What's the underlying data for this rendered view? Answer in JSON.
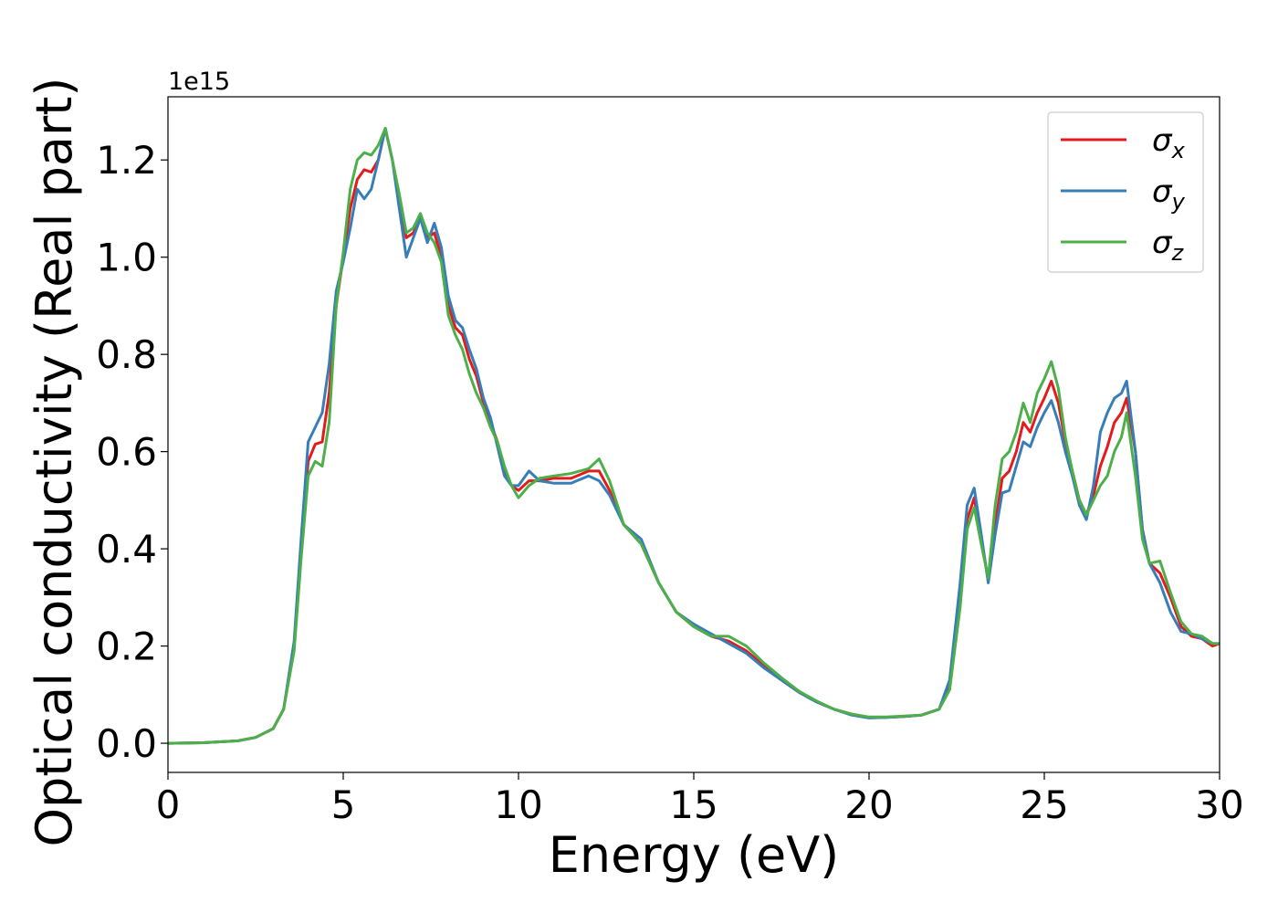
{
  "chart_data": {
    "type": "line",
    "title": "",
    "xlabel": "Energy (eV)",
    "ylabel": "Optical conductivity (Real part)",
    "y_offset_label": "1e15",
    "xlim": [
      0,
      30
    ],
    "ylim": [
      -0.06,
      1.33
    ],
    "x_ticks": [
      0,
      5,
      10,
      15,
      20,
      25,
      30
    ],
    "x_tick_labels": [
      "0",
      "5",
      "10",
      "15",
      "20",
      "25",
      "30"
    ],
    "y_ticks": [
      0.0,
      0.2,
      0.4,
      0.6,
      0.8,
      1.0,
      1.2
    ],
    "y_tick_labels": [
      "0.0",
      "0.2",
      "0.4",
      "0.6",
      "0.8",
      "1.0",
      "1.2"
    ],
    "grid": false,
    "legend_position": "top-right",
    "series": [
      {
        "name": "σx",
        "legend_base": "σ",
        "legend_sub": "x",
        "color": "#e41a1c",
        "points": [
          [
            0,
            0.0
          ],
          [
            1,
            0.001
          ],
          [
            2,
            0.005
          ],
          [
            2.5,
            0.012
          ],
          [
            3,
            0.03
          ],
          [
            3.3,
            0.07
          ],
          [
            3.6,
            0.2
          ],
          [
            3.8,
            0.4
          ],
          [
            4.0,
            0.58
          ],
          [
            4.2,
            0.615
          ],
          [
            4.4,
            0.62
          ],
          [
            4.6,
            0.72
          ],
          [
            4.8,
            0.9
          ],
          [
            5.0,
            1.0
          ],
          [
            5.2,
            1.1
          ],
          [
            5.4,
            1.16
          ],
          [
            5.6,
            1.18
          ],
          [
            5.8,
            1.175
          ],
          [
            6.0,
            1.2
          ],
          [
            6.2,
            1.265
          ],
          [
            6.4,
            1.2
          ],
          [
            6.6,
            1.12
          ],
          [
            6.8,
            1.04
          ],
          [
            7.0,
            1.05
          ],
          [
            7.2,
            1.085
          ],
          [
            7.4,
            1.04
          ],
          [
            7.6,
            1.05
          ],
          [
            7.8,
            1.0
          ],
          [
            8.0,
            0.9
          ],
          [
            8.2,
            0.855
          ],
          [
            8.4,
            0.84
          ],
          [
            8.6,
            0.79
          ],
          [
            8.8,
            0.755
          ],
          [
            9.0,
            0.7
          ],
          [
            9.2,
            0.66
          ],
          [
            9.4,
            0.62
          ],
          [
            9.6,
            0.56
          ],
          [
            9.8,
            0.53
          ],
          [
            10.0,
            0.52
          ],
          [
            10.3,
            0.54
          ],
          [
            10.6,
            0.54
          ],
          [
            11.0,
            0.545
          ],
          [
            11.5,
            0.545
          ],
          [
            12.0,
            0.56
          ],
          [
            12.3,
            0.56
          ],
          [
            12.6,
            0.52
          ],
          [
            13.0,
            0.45
          ],
          [
            13.5,
            0.41
          ],
          [
            14.0,
            0.33
          ],
          [
            14.5,
            0.27
          ],
          [
            15.0,
            0.24
          ],
          [
            15.5,
            0.22
          ],
          [
            16.0,
            0.21
          ],
          [
            16.5,
            0.19
          ],
          [
            17.0,
            0.16
          ],
          [
            17.5,
            0.13
          ],
          [
            18.0,
            0.105
          ],
          [
            18.5,
            0.085
          ],
          [
            19.0,
            0.07
          ],
          [
            19.5,
            0.06
          ],
          [
            20.0,
            0.053
          ],
          [
            20.5,
            0.053
          ],
          [
            21.0,
            0.055
          ],
          [
            21.5,
            0.058
          ],
          [
            22.0,
            0.07
          ],
          [
            22.3,
            0.12
          ],
          [
            22.6,
            0.3
          ],
          [
            22.8,
            0.46
          ],
          [
            23.0,
            0.505
          ],
          [
            23.2,
            0.42
          ],
          [
            23.4,
            0.335
          ],
          [
            23.6,
            0.45
          ],
          [
            23.8,
            0.545
          ],
          [
            24.0,
            0.56
          ],
          [
            24.2,
            0.6
          ],
          [
            24.4,
            0.66
          ],
          [
            24.6,
            0.64
          ],
          [
            24.8,
            0.68
          ],
          [
            25.0,
            0.71
          ],
          [
            25.2,
            0.745
          ],
          [
            25.4,
            0.7
          ],
          [
            25.6,
            0.62
          ],
          [
            25.8,
            0.56
          ],
          [
            26.0,
            0.5
          ],
          [
            26.2,
            0.47
          ],
          [
            26.4,
            0.51
          ],
          [
            26.6,
            0.57
          ],
          [
            26.8,
            0.61
          ],
          [
            27.0,
            0.66
          ],
          [
            27.2,
            0.68
          ],
          [
            27.35,
            0.71
          ],
          [
            27.6,
            0.6
          ],
          [
            27.8,
            0.44
          ],
          [
            28.0,
            0.37
          ],
          [
            28.3,
            0.35
          ],
          [
            28.6,
            0.3
          ],
          [
            28.9,
            0.24
          ],
          [
            29.2,
            0.22
          ],
          [
            29.5,
            0.215
          ],
          [
            29.8,
            0.2
          ],
          [
            30.0,
            0.205
          ]
        ]
      },
      {
        "name": "σy",
        "legend_base": "σ",
        "legend_sub": "y",
        "color": "#377eb8",
        "points": [
          [
            0,
            0.0
          ],
          [
            1,
            0.001
          ],
          [
            2,
            0.005
          ],
          [
            2.5,
            0.012
          ],
          [
            3,
            0.03
          ],
          [
            3.3,
            0.07
          ],
          [
            3.6,
            0.21
          ],
          [
            3.8,
            0.42
          ],
          [
            4.0,
            0.62
          ],
          [
            4.2,
            0.65
          ],
          [
            4.4,
            0.68
          ],
          [
            4.6,
            0.78
          ],
          [
            4.8,
            0.93
          ],
          [
            5.0,
            0.99
          ],
          [
            5.2,
            1.06
          ],
          [
            5.4,
            1.14
          ],
          [
            5.6,
            1.12
          ],
          [
            5.8,
            1.14
          ],
          [
            6.0,
            1.2
          ],
          [
            6.2,
            1.265
          ],
          [
            6.4,
            1.2
          ],
          [
            6.6,
            1.1
          ],
          [
            6.8,
            1.0
          ],
          [
            7.0,
            1.04
          ],
          [
            7.2,
            1.08
          ],
          [
            7.4,
            1.03
          ],
          [
            7.6,
            1.07
          ],
          [
            7.8,
            1.02
          ],
          [
            8.0,
            0.92
          ],
          [
            8.2,
            0.87
          ],
          [
            8.4,
            0.855
          ],
          [
            8.6,
            0.81
          ],
          [
            8.8,
            0.77
          ],
          [
            9.0,
            0.71
          ],
          [
            9.2,
            0.67
          ],
          [
            9.4,
            0.61
          ],
          [
            9.6,
            0.55
          ],
          [
            9.8,
            0.53
          ],
          [
            10.0,
            0.53
          ],
          [
            10.3,
            0.56
          ],
          [
            10.6,
            0.54
          ],
          [
            11.0,
            0.535
          ],
          [
            11.5,
            0.535
          ],
          [
            12.0,
            0.55
          ],
          [
            12.3,
            0.54
          ],
          [
            12.6,
            0.51
          ],
          [
            13.0,
            0.45
          ],
          [
            13.5,
            0.42
          ],
          [
            14.0,
            0.33
          ],
          [
            14.5,
            0.27
          ],
          [
            15.0,
            0.245
          ],
          [
            15.5,
            0.225
          ],
          [
            16.0,
            0.205
          ],
          [
            16.5,
            0.185
          ],
          [
            17.0,
            0.155
          ],
          [
            17.5,
            0.13
          ],
          [
            18.0,
            0.105
          ],
          [
            18.5,
            0.085
          ],
          [
            19.0,
            0.07
          ],
          [
            19.5,
            0.058
          ],
          [
            20.0,
            0.052
          ],
          [
            20.5,
            0.053
          ],
          [
            21.0,
            0.055
          ],
          [
            21.5,
            0.058
          ],
          [
            22.0,
            0.07
          ],
          [
            22.3,
            0.13
          ],
          [
            22.6,
            0.33
          ],
          [
            22.8,
            0.49
          ],
          [
            23.0,
            0.525
          ],
          [
            23.2,
            0.43
          ],
          [
            23.4,
            0.33
          ],
          [
            23.6,
            0.43
          ],
          [
            23.8,
            0.515
          ],
          [
            24.0,
            0.52
          ],
          [
            24.2,
            0.57
          ],
          [
            24.4,
            0.62
          ],
          [
            24.6,
            0.61
          ],
          [
            24.8,
            0.65
          ],
          [
            25.0,
            0.68
          ],
          [
            25.2,
            0.705
          ],
          [
            25.4,
            0.66
          ],
          [
            25.6,
            0.6
          ],
          [
            25.8,
            0.55
          ],
          [
            26.0,
            0.49
          ],
          [
            26.2,
            0.46
          ],
          [
            26.4,
            0.53
          ],
          [
            26.6,
            0.64
          ],
          [
            26.8,
            0.68
          ],
          [
            27.0,
            0.71
          ],
          [
            27.2,
            0.72
          ],
          [
            27.35,
            0.745
          ],
          [
            27.6,
            0.6
          ],
          [
            27.8,
            0.44
          ],
          [
            28.0,
            0.37
          ],
          [
            28.3,
            0.33
          ],
          [
            28.6,
            0.27
          ],
          [
            28.9,
            0.23
          ],
          [
            29.2,
            0.225
          ],
          [
            29.5,
            0.215
          ],
          [
            29.8,
            0.205
          ],
          [
            30.0,
            0.205
          ]
        ]
      },
      {
        "name": "σz",
        "legend_base": "σ",
        "legend_sub": "z",
        "color": "#4daf4a",
        "points": [
          [
            0,
            0.0
          ],
          [
            1,
            0.001
          ],
          [
            2,
            0.005
          ],
          [
            2.5,
            0.012
          ],
          [
            3,
            0.03
          ],
          [
            3.3,
            0.07
          ],
          [
            3.6,
            0.19
          ],
          [
            3.8,
            0.38
          ],
          [
            4.0,
            0.55
          ],
          [
            4.2,
            0.58
          ],
          [
            4.4,
            0.57
          ],
          [
            4.6,
            0.66
          ],
          [
            4.8,
            0.9
          ],
          [
            5.0,
            1.01
          ],
          [
            5.2,
            1.14
          ],
          [
            5.4,
            1.2
          ],
          [
            5.6,
            1.215
          ],
          [
            5.8,
            1.21
          ],
          [
            6.0,
            1.23
          ],
          [
            6.2,
            1.265
          ],
          [
            6.4,
            1.2
          ],
          [
            6.6,
            1.13
          ],
          [
            6.8,
            1.05
          ],
          [
            7.0,
            1.06
          ],
          [
            7.2,
            1.09
          ],
          [
            7.4,
            1.05
          ],
          [
            7.6,
            1.03
          ],
          [
            7.8,
            0.99
          ],
          [
            8.0,
            0.88
          ],
          [
            8.2,
            0.84
          ],
          [
            8.4,
            0.81
          ],
          [
            8.6,
            0.76
          ],
          [
            8.8,
            0.72
          ],
          [
            9.0,
            0.69
          ],
          [
            9.2,
            0.65
          ],
          [
            9.4,
            0.62
          ],
          [
            9.6,
            0.57
          ],
          [
            9.8,
            0.53
          ],
          [
            10.0,
            0.505
          ],
          [
            10.3,
            0.53
          ],
          [
            10.6,
            0.545
          ],
          [
            11.0,
            0.55
          ],
          [
            11.5,
            0.555
          ],
          [
            12.0,
            0.565
          ],
          [
            12.3,
            0.585
          ],
          [
            12.6,
            0.54
          ],
          [
            13.0,
            0.45
          ],
          [
            13.5,
            0.41
          ],
          [
            14.0,
            0.33
          ],
          [
            14.5,
            0.27
          ],
          [
            15.0,
            0.24
          ],
          [
            15.5,
            0.22
          ],
          [
            16.0,
            0.22
          ],
          [
            16.5,
            0.2
          ],
          [
            17.0,
            0.165
          ],
          [
            17.5,
            0.135
          ],
          [
            18.0,
            0.107
          ],
          [
            18.5,
            0.087
          ],
          [
            19.0,
            0.07
          ],
          [
            19.5,
            0.06
          ],
          [
            20.0,
            0.054
          ],
          [
            20.5,
            0.054
          ],
          [
            21.0,
            0.056
          ],
          [
            21.5,
            0.058
          ],
          [
            22.0,
            0.07
          ],
          [
            22.3,
            0.11
          ],
          [
            22.6,
            0.28
          ],
          [
            22.8,
            0.44
          ],
          [
            23.0,
            0.485
          ],
          [
            23.2,
            0.41
          ],
          [
            23.4,
            0.34
          ],
          [
            23.6,
            0.49
          ],
          [
            23.8,
            0.585
          ],
          [
            24.0,
            0.6
          ],
          [
            24.2,
            0.64
          ],
          [
            24.4,
            0.7
          ],
          [
            24.6,
            0.66
          ],
          [
            24.8,
            0.72
          ],
          [
            25.0,
            0.75
          ],
          [
            25.2,
            0.785
          ],
          [
            25.4,
            0.73
          ],
          [
            25.6,
            0.63
          ],
          [
            25.8,
            0.56
          ],
          [
            26.0,
            0.5
          ],
          [
            26.2,
            0.47
          ],
          [
            26.4,
            0.5
          ],
          [
            26.6,
            0.53
          ],
          [
            26.8,
            0.55
          ],
          [
            27.0,
            0.6
          ],
          [
            27.2,
            0.63
          ],
          [
            27.35,
            0.68
          ],
          [
            27.6,
            0.55
          ],
          [
            27.8,
            0.42
          ],
          [
            28.0,
            0.37
          ],
          [
            28.3,
            0.375
          ],
          [
            28.6,
            0.31
          ],
          [
            28.9,
            0.25
          ],
          [
            29.2,
            0.225
          ],
          [
            29.5,
            0.22
          ],
          [
            29.8,
            0.205
          ],
          [
            30.0,
            0.205
          ]
        ]
      }
    ]
  }
}
